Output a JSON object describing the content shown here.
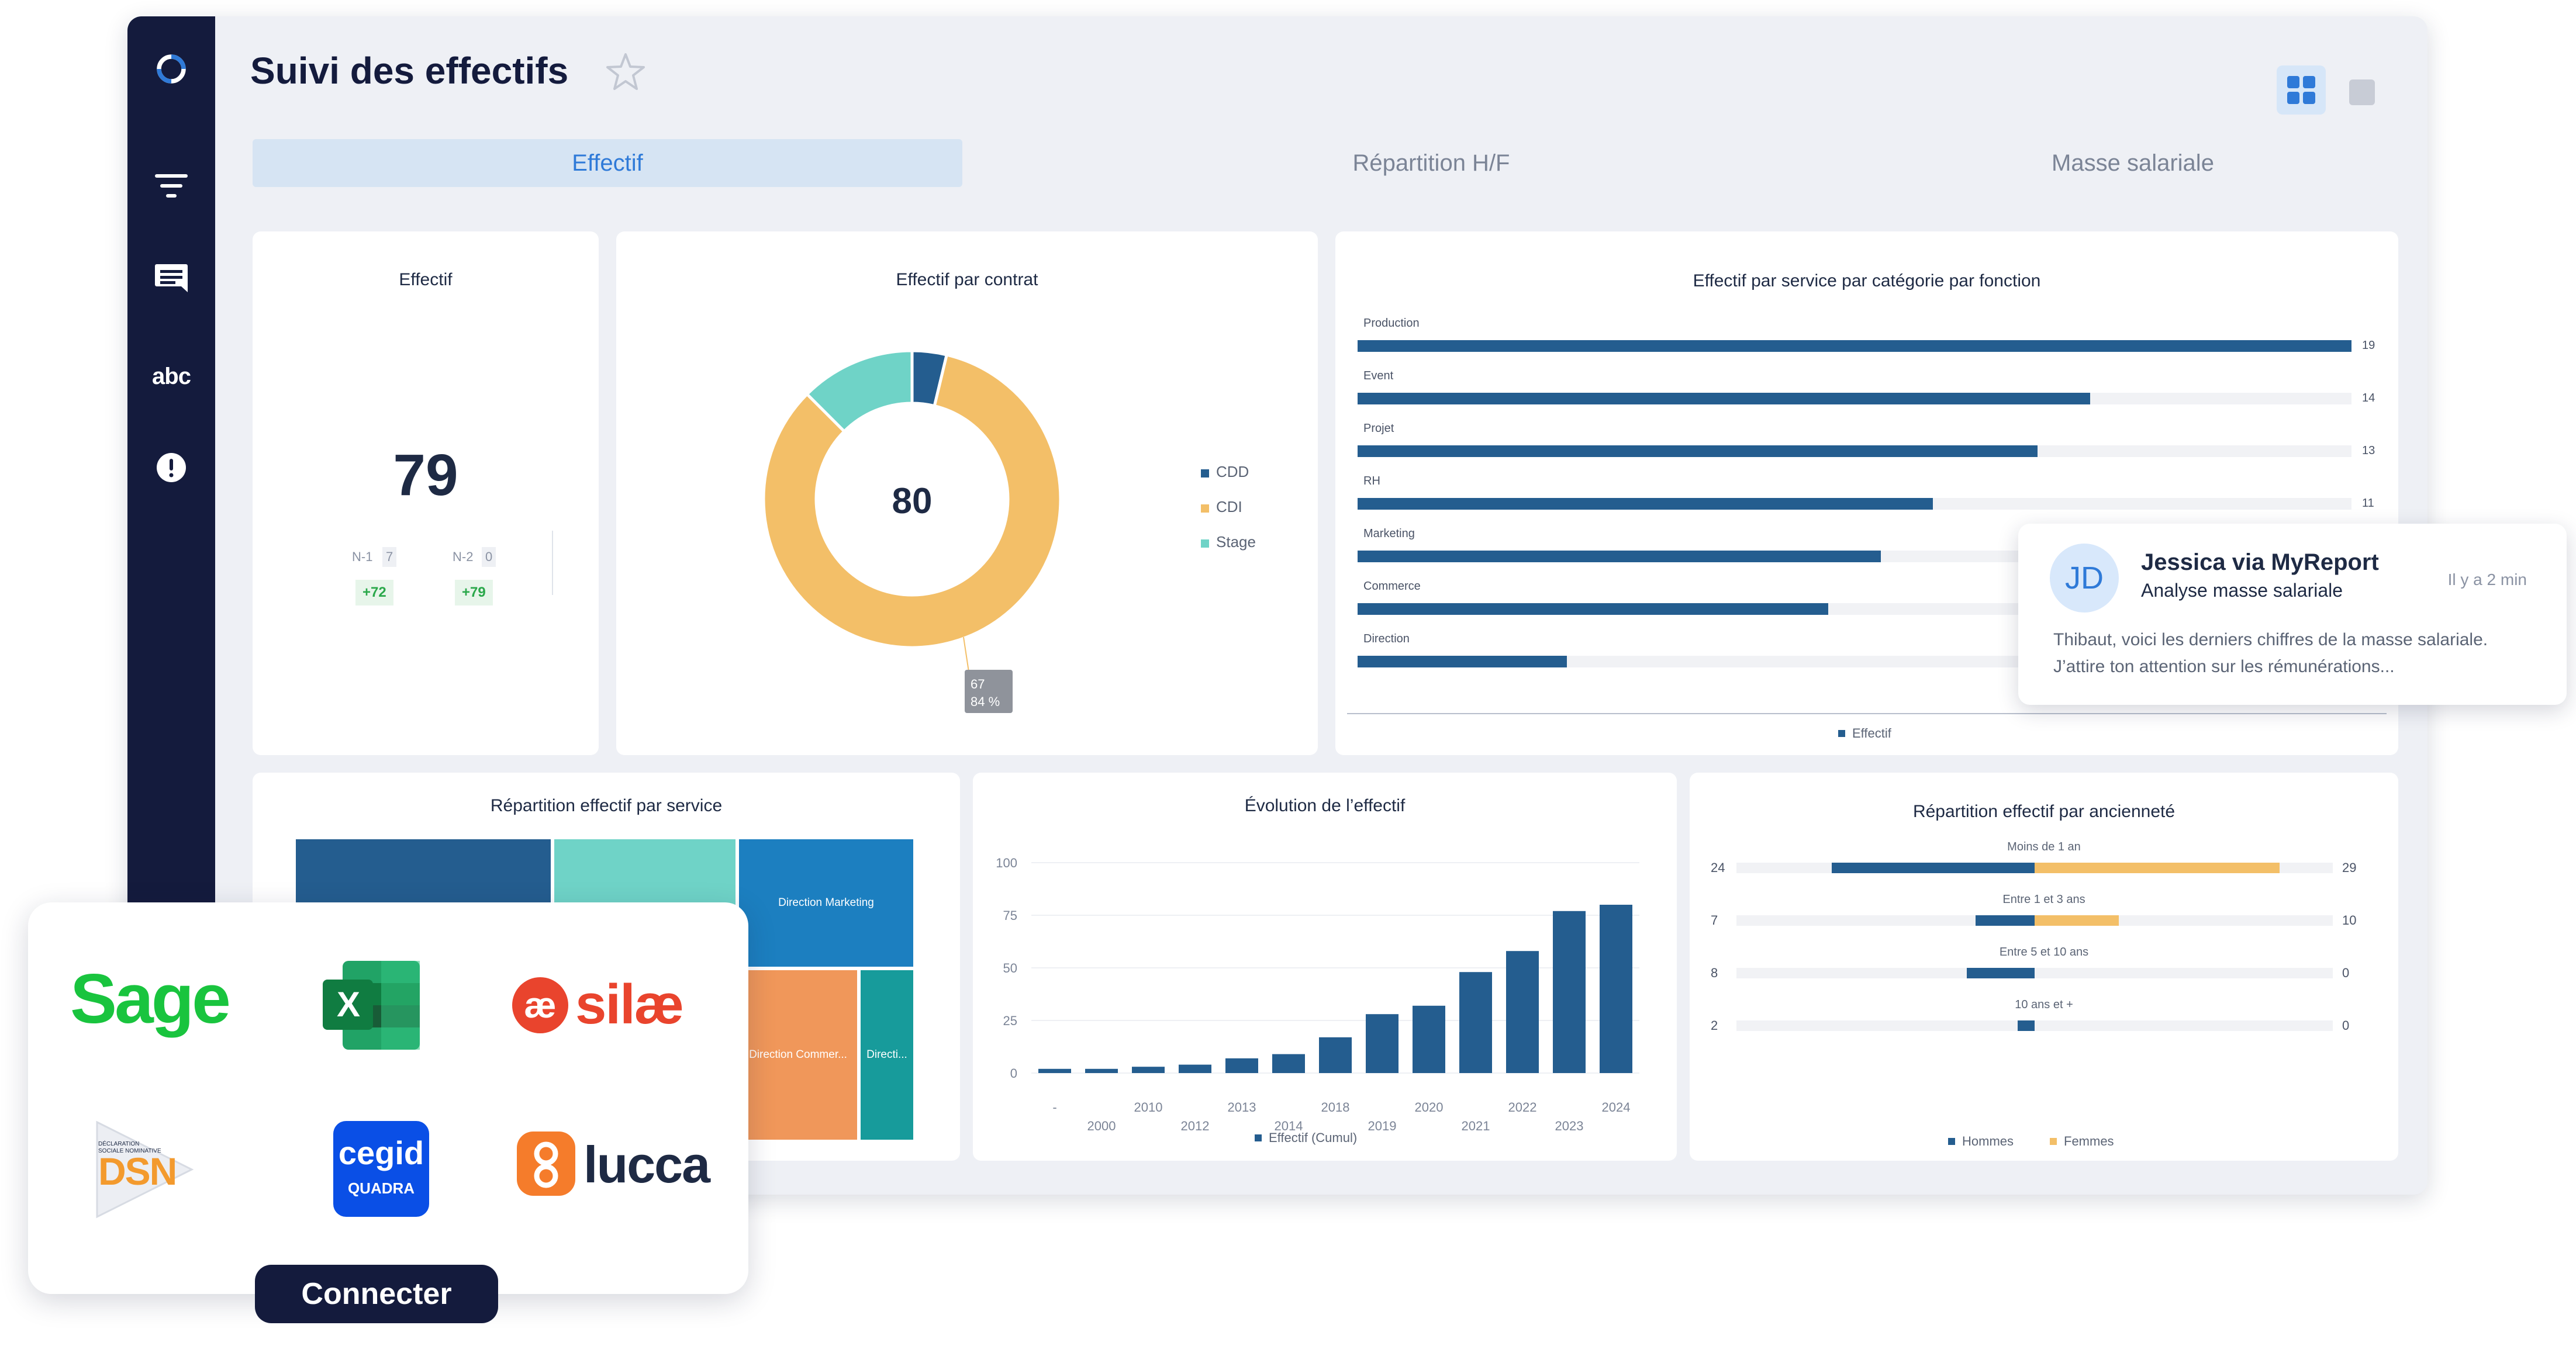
{
  "page": {
    "title": "Suivi des effectifs"
  },
  "sidebar": {
    "items": [
      {
        "icon": "logo-icon"
      },
      {
        "icon": "filter-icon"
      },
      {
        "icon": "comment-icon"
      },
      {
        "label": "abc",
        "icon": "text-icon"
      },
      {
        "icon": "alert-icon"
      }
    ]
  },
  "tabs": [
    {
      "label": "Effectif",
      "active": true
    },
    {
      "label": "Répartition H/F",
      "active": false
    },
    {
      "label": "Masse salariale",
      "active": false
    }
  ],
  "colors": {
    "primary": "#245d8f",
    "accent": "#f3bf68",
    "teal": "#6fd3c7",
    "sidebar": "#141b3d",
    "active_tab": "#2f7ad8"
  },
  "kpi": {
    "title": "Effectif",
    "value": "79",
    "n1_label": "N-1",
    "n1_value": "7",
    "n1_delta": "+72",
    "n2_label": "N-2",
    "n2_value": "0",
    "n2_delta": "+79"
  },
  "donut": {
    "title": "Effectif par contrat",
    "center_value": "80",
    "tooltip_value": "67",
    "tooltip_pct": "84 %"
  },
  "service_bars": {
    "title": "Effectif par service par catégorie par fonction",
    "legend": "Effectif"
  },
  "treemap": {
    "title": "Répartition effectif par service",
    "labels": [
      "Direction Marketing",
      "Direction Commer...",
      "Directi..."
    ]
  },
  "evolution": {
    "title": "Évolution de l’effectif",
    "legend": "Effectif (Cumul)"
  },
  "seniority": {
    "title": "Répartition effectif par ancienneté",
    "legend_men": "Hommes",
    "legend_women": "Femmes"
  },
  "connect": {
    "button_label": "Connecter",
    "logos": [
      {
        "name": "Sage",
        "label": "Sage"
      },
      {
        "name": "Excel",
        "label": "X"
      },
      {
        "name": "Silae",
        "label": "silæ",
        "mark": "æ"
      },
      {
        "name": "DSN",
        "label": "DSN",
        "sub": "DÉCLARATION SOCIALE NOMINATIVE"
      },
      {
        "name": "Cegid Quadra",
        "label": "cegid",
        "sub": "QUADRA"
      },
      {
        "name": "Lucca",
        "label": "lucca"
      }
    ]
  },
  "notification": {
    "initials": "JD",
    "name": "Jessica via MyReport",
    "subtitle": "Analyse masse salariale",
    "time": "Il y a 2 min",
    "body_line1": "Thibaut, voici les derniers chiffres de la masse salariale.",
    "body_line2": "J’attire ton attention sur les rémunérations..."
  },
  "chart_data": [
    {
      "type": "pie",
      "title": "Effectif par contrat",
      "labels": [
        "CDD",
        "CDI",
        "Stage"
      ],
      "values": [
        3,
        67,
        10
      ],
      "colors": [
        "#245d8f",
        "#f3bf68",
        "#6fd3c7"
      ],
      "center_label": "80"
    },
    {
      "type": "bar",
      "orientation": "horizontal",
      "title": "Effectif par service par catégorie par fonction",
      "categories": [
        "Production",
        "Event",
        "Projet",
        "RH",
        "Marketing",
        "Commerce",
        "Direction"
      ],
      "series": [
        {
          "name": "Effectif",
          "values": [
            19,
            14,
            13,
            11,
            10,
            9,
            4
          ]
        }
      ],
      "value_labels": [
        "19",
        "14",
        "13",
        "11"
      ],
      "xlim": [
        0,
        19
      ]
    },
    {
      "type": "heatmap",
      "subtype": "treemap",
      "title": "Répartition effectif par service",
      "cells": [
        {
          "label": "",
          "value": 28,
          "color": "#245d8f"
        },
        {
          "label": "",
          "value": 16,
          "color": "#6fd3c7"
        },
        {
          "label": "Direction Marketing",
          "value": 10,
          "color": "#1c7fc0"
        },
        {
          "label": "Direction Commer...",
          "value": 13,
          "color": "#f0975a"
        },
        {
          "label": "Directi...",
          "value": 4,
          "color": "#179b9b"
        }
      ]
    },
    {
      "type": "bar",
      "title": "Évolution de l’effectif",
      "categories": [
        "-",
        "2000",
        "2010",
        "2012",
        "2013",
        "2014",
        "2018",
        "2019",
        "2020",
        "2021",
        "2022",
        "2023",
        "2024"
      ],
      "series": [
        {
          "name": "Effectif (Cumul)",
          "values": [
            2,
            2,
            3,
            4,
            7,
            9,
            17,
            28,
            32,
            48,
            58,
            77,
            80
          ]
        }
      ],
      "ylim": [
        0,
        100
      ],
      "yticks": [
        0,
        25,
        50,
        75,
        100
      ]
    },
    {
      "type": "bar",
      "orientation": "horizontal",
      "subtype": "diverging",
      "title": "Répartition effectif par ancienneté",
      "categories": [
        "Moins de 1 an",
        "Entre 1 et 3 ans",
        "Entre 5 et 10 ans",
        "10 ans et +"
      ],
      "series": [
        {
          "name": "Hommes",
          "values": [
            24,
            7,
            8,
            2
          ]
        },
        {
          "name": "Femmes",
          "values": [
            29,
            10,
            0,
            0
          ]
        }
      ]
    }
  ]
}
